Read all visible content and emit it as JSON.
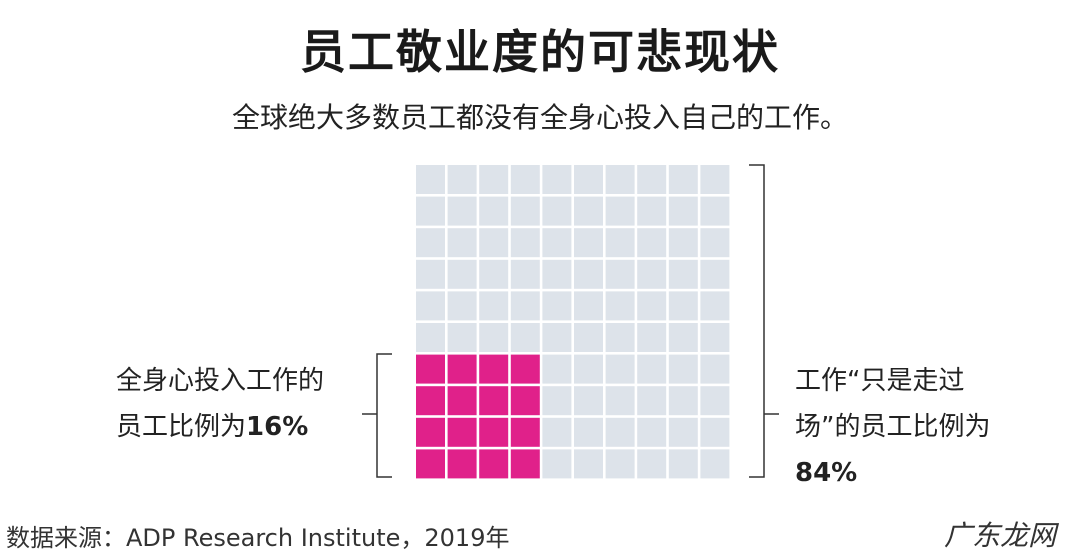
{
  "title": "员工敬业度的可悲现状",
  "subtitle": "全球绝大多数员工都没有全身心投入自己的工作。",
  "chart_data": {
    "type": "waffle",
    "rows": 10,
    "cols": 10,
    "series": [
      {
        "name": "全身心投入工作的员工比例为16%",
        "value": 16,
        "color": "#e0218a"
      },
      {
        "name": "工作“只是走过场”的员工比例为84%",
        "value": 84,
        "color": "#dde3ea"
      }
    ],
    "highlight_block": {
      "cols": 4,
      "rows": 4,
      "position": "bottom-left"
    }
  },
  "labels": {
    "left_line1": "全身心投入工作的",
    "left_line2_prefix": "员工比例为",
    "left_value": "16%",
    "right_line1": "工作“只是走过",
    "right_line2": "场”的员工比例为",
    "right_value": "84%"
  },
  "source": "数据来源：ADP Research Institute，2019年",
  "watermark": "广东龙网"
}
